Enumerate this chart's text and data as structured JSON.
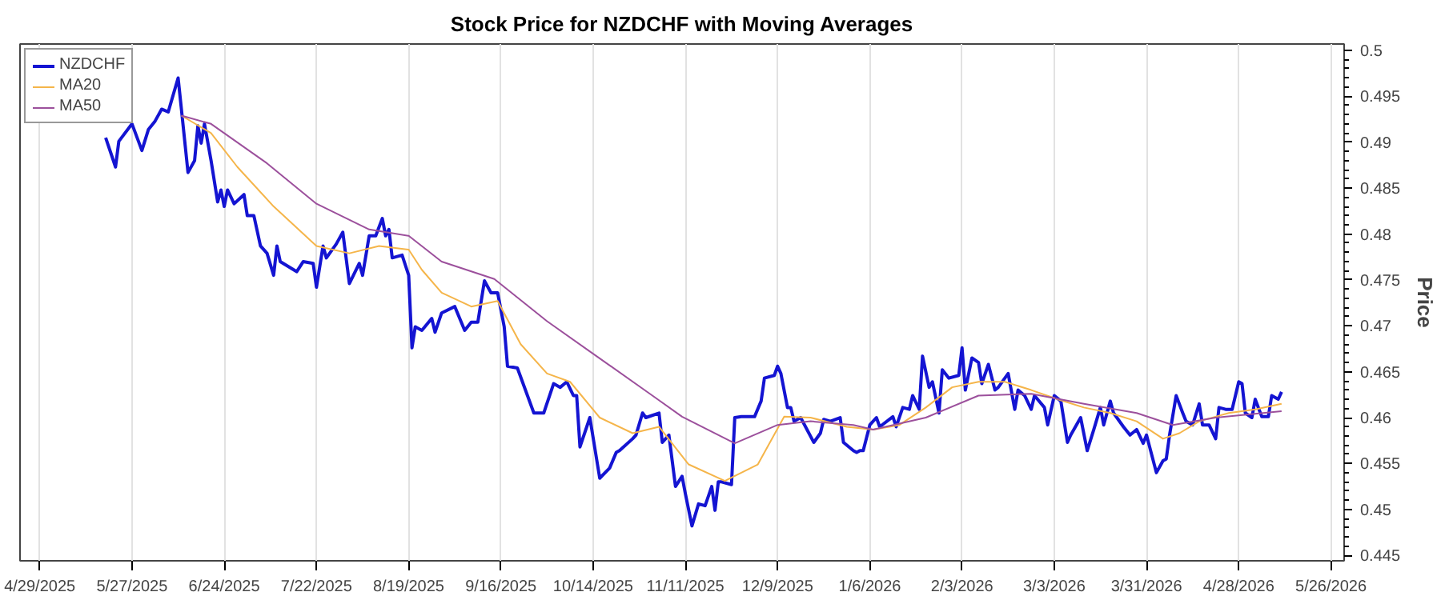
{
  "chart_data": {
    "type": "line",
    "title": "Stock Price for NZDCHF with Moving Averages",
    "ylabel": "Price",
    "xlim": [
      "2025-04-23",
      "2026-05-30"
    ],
    "xticks": [
      {
        "value": "2025-04-29",
        "label": "4/29/2025"
      },
      {
        "value": "2025-05-27",
        "label": "5/27/2025"
      },
      {
        "value": "2025-06-24",
        "label": "6/24/2025"
      },
      {
        "value": "2025-07-22",
        "label": "7/22/2025"
      },
      {
        "value": "2025-08-19",
        "label": "8/19/2025"
      },
      {
        "value": "2025-09-16",
        "label": "9/16/2025"
      },
      {
        "value": "2025-10-14",
        "label": "10/14/2025"
      },
      {
        "value": "2025-11-11",
        "label": "11/11/2025"
      },
      {
        "value": "2025-12-09",
        "label": "12/9/2025"
      },
      {
        "value": "2026-01-06",
        "label": "1/6/2026"
      },
      {
        "value": "2026-02-03",
        "label": "2/3/2026"
      },
      {
        "value": "2026-03-03",
        "label": "3/3/2026"
      },
      {
        "value": "2026-03-31",
        "label": "3/31/2026"
      },
      {
        "value": "2026-04-28",
        "label": "4/28/2026"
      },
      {
        "value": "2026-05-26",
        "label": "5/26/2026"
      }
    ],
    "ylim": [
      0.4444,
      0.5007
    ],
    "yticks": [
      0.445,
      0.45,
      0.455,
      0.46,
      0.465,
      0.47,
      0.475,
      0.48,
      0.485,
      0.49,
      0.495,
      0.5
    ],
    "grid": "x",
    "legend": "top left",
    "marker": "none",
    "line_style": "solid",
    "series": [
      {
        "name": "NZDCHF",
        "color": "#1414d2",
        "x": [
          "2025-05-19",
          "2025-05-22",
          "2025-05-23",
          "2025-05-27",
          "2025-05-30",
          "2025-06-01",
          "2025-06-03",
          "2025-06-05",
          "2025-06-07",
          "2025-06-10",
          "2025-06-11",
          "2025-06-13",
          "2025-06-15",
          "2025-06-16",
          "2025-06-17",
          "2025-06-18",
          "2025-06-20",
          "2025-06-22",
          "2025-06-23",
          "2025-06-24",
          "2025-06-25",
          "2025-06-27",
          "2025-06-30",
          "2025-07-01",
          "2025-07-03",
          "2025-07-05",
          "2025-07-07",
          "2025-07-09",
          "2025-07-10",
          "2025-07-11",
          "2025-07-16",
          "2025-07-18",
          "2025-07-21",
          "2025-07-22",
          "2025-07-24",
          "2025-07-25",
          "2025-07-28",
          "2025-07-30",
          "2025-08-01",
          "2025-08-04",
          "2025-08-05",
          "2025-08-07",
          "2025-08-09",
          "2025-08-11",
          "2025-08-12",
          "2025-08-13",
          "2025-08-14",
          "2025-08-17",
          "2025-08-19",
          "2025-08-20",
          "2025-08-21",
          "2025-08-23",
          "2025-08-26",
          "2025-08-27",
          "2025-08-29",
          "2025-09-02",
          "2025-09-05",
          "2025-09-07",
          "2025-09-09",
          "2025-09-11",
          "2025-09-13",
          "2025-09-15",
          "2025-09-17",
          "2025-09-18",
          "2025-09-21",
          "2025-09-26",
          "2025-09-29",
          "2025-10-02",
          "2025-10-04",
          "2025-10-06",
          "2025-10-08",
          "2025-10-09",
          "2025-10-10",
          "2025-10-13",
          "2025-10-16",
          "2025-10-19",
          "2025-10-21",
          "2025-10-22",
          "2025-10-26",
          "2025-10-27",
          "2025-10-29",
          "2025-10-30",
          "2025-11-03",
          "2025-11-04",
          "2025-11-06",
          "2025-11-08",
          "2025-11-10",
          "2025-11-11",
          "2025-11-13",
          "2025-11-15",
          "2025-11-17",
          "2025-11-19",
          "2025-11-20",
          "2025-11-21",
          "2025-11-22",
          "2025-11-25",
          "2025-11-26",
          "2025-11-28",
          "2025-12-02",
          "2025-12-04",
          "2025-12-05",
          "2025-12-08",
          "2025-12-09",
          "2025-12-10",
          "2025-12-12",
          "2025-12-13",
          "2025-12-14",
          "2025-12-16",
          "2025-12-20",
          "2025-12-22",
          "2025-12-23",
          "2025-12-25",
          "2025-12-28",
          "2025-12-29",
          "2026-01-01",
          "2026-01-02",
          "2026-01-03",
          "2026-01-04",
          "2026-01-06",
          "2026-01-08",
          "2026-01-09",
          "2026-01-13",
          "2026-01-14",
          "2026-01-16",
          "2026-01-18",
          "2026-01-19",
          "2026-01-21",
          "2026-01-22",
          "2026-01-24",
          "2026-01-25",
          "2026-01-27",
          "2026-01-28",
          "2026-01-30",
          "2026-02-02",
          "2026-02-03",
          "2026-02-04",
          "2026-02-06",
          "2026-02-08",
          "2026-02-09",
          "2026-02-11",
          "2026-02-13",
          "2026-02-14",
          "2026-02-17",
          "2026-02-19",
          "2026-02-20",
          "2026-02-22",
          "2026-02-24",
          "2026-02-25",
          "2026-02-28",
          "2026-03-01",
          "2026-03-03",
          "2026-03-05",
          "2026-03-07",
          "2026-03-08",
          "2026-03-11",
          "2026-03-13",
          "2026-03-15",
          "2026-03-17",
          "2026-03-18",
          "2026-03-20",
          "2026-03-21",
          "2026-03-24",
          "2026-03-26",
          "2026-03-28",
          "2026-03-30",
          "2026-03-31",
          "2026-04-03",
          "2026-04-05",
          "2026-04-06",
          "2026-04-07",
          "2026-04-09",
          "2026-04-11",
          "2026-04-12",
          "2026-04-14",
          "2026-04-16",
          "2026-04-17",
          "2026-04-19",
          "2026-04-21",
          "2026-04-22",
          "2026-04-24",
          "2026-04-26",
          "2026-04-28",
          "2026-04-29",
          "2026-04-30",
          "2026-05-02",
          "2026-05-03",
          "2026-05-05",
          "2026-05-07",
          "2026-05-08",
          "2026-05-10",
          "2026-05-11"
        ],
        "values": [
          0.4905,
          0.4873,
          0.4901,
          0.492,
          0.4891,
          0.4914,
          0.4923,
          0.4936,
          0.4933,
          0.497,
          0.4936,
          0.4867,
          0.488,
          0.4918,
          0.4899,
          0.492,
          0.488,
          0.4835,
          0.4848,
          0.483,
          0.4848,
          0.4833,
          0.4843,
          0.482,
          0.482,
          0.4787,
          0.4779,
          0.4755,
          0.4787,
          0.477,
          0.4759,
          0.477,
          0.4768,
          0.4742,
          0.4787,
          0.4774,
          0.4789,
          0.4802,
          0.4746,
          0.4768,
          0.4755,
          0.4798,
          0.4798,
          0.4817,
          0.4798,
          0.4805,
          0.4774,
          0.4777,
          0.4755,
          0.4676,
          0.4699,
          0.4695,
          0.4708,
          0.4693,
          0.4714,
          0.4721,
          0.4695,
          0.4704,
          0.4704,
          0.4749,
          0.4736,
          0.4736,
          0.4699,
          0.4656,
          0.4654,
          0.4605,
          0.4605,
          0.4637,
          0.4633,
          0.4639,
          0.4624,
          0.4624,
          0.4568,
          0.46,
          0.4534,
          0.4545,
          0.4562,
          0.4564,
          0.4577,
          0.4581,
          0.4605,
          0.46,
          0.4605,
          0.4573,
          0.4581,
          0.4525,
          0.4536,
          0.4517,
          0.4482,
          0.4506,
          0.4504,
          0.4525,
          0.4499,
          0.453,
          0.453,
          0.4527,
          0.46,
          0.4601,
          0.4601,
          0.4618,
          0.4643,
          0.4646,
          0.4656,
          0.4648,
          0.4611,
          0.4611,
          0.4596,
          0.46,
          0.4573,
          0.4583,
          0.4598,
          0.4596,
          0.46,
          0.4573,
          0.4564,
          0.4562,
          0.4564,
          0.4564,
          0.4592,
          0.46,
          0.459,
          0.4601,
          0.459,
          0.4611,
          0.4609,
          0.4624,
          0.4609,
          0.4667,
          0.4633,
          0.4639,
          0.4605,
          0.4652,
          0.4643,
          0.4646,
          0.4676,
          0.463,
          0.4665,
          0.466,
          0.4637,
          0.4658,
          0.463,
          0.4633,
          0.4648,
          0.4609,
          0.463,
          0.4624,
          0.4609,
          0.4624,
          0.4611,
          0.4592,
          0.4624,
          0.4618,
          0.4573,
          0.4581,
          0.46,
          0.4564,
          0.4587,
          0.4611,
          0.4592,
          0.4618,
          0.4605,
          0.459,
          0.4581,
          0.4587,
          0.4572,
          0.4581,
          0.454,
          0.4553,
          0.4555,
          0.4581,
          0.4624,
          0.4605,
          0.4596,
          0.4592,
          0.4615,
          0.4592,
          0.4592,
          0.4577,
          0.4611,
          0.4609,
          0.4609,
          0.4639,
          0.4637,
          0.4605,
          0.46,
          0.462,
          0.4601,
          0.4601,
          0.4624,
          0.462,
          0.4628
        ]
      },
      {
        "name": "MA20",
        "color": "#f5b54a",
        "x": [
          "2025-06-11",
          "2025-06-20",
          "2025-06-28",
          "2025-07-09",
          "2025-07-22",
          "2025-08-01",
          "2025-08-10",
          "2025-08-19",
          "2025-08-23",
          "2025-08-29",
          "2025-09-07",
          "2025-09-15",
          "2025-09-22",
          "2025-09-30",
          "2025-10-07",
          "2025-10-16",
          "2025-10-26",
          "2025-11-03",
          "2025-11-12",
          "2025-11-23",
          "2025-12-03",
          "2025-12-11",
          "2025-12-19",
          "2025-12-30",
          "2026-01-07",
          "2026-01-15",
          "2026-01-23",
          "2026-01-31",
          "2026-02-08",
          "2026-02-16",
          "2026-02-24",
          "2026-03-04",
          "2026-03-12",
          "2026-03-20",
          "2026-03-28",
          "2026-04-05",
          "2026-04-10",
          "2026-04-16",
          "2026-04-25",
          "2026-05-03",
          "2026-05-11"
        ],
        "values": [
          0.4929,
          0.491,
          0.4873,
          0.483,
          0.4787,
          0.4779,
          0.4787,
          0.4783,
          0.4761,
          0.4736,
          0.4721,
          0.4727,
          0.468,
          0.4648,
          0.4639,
          0.46,
          0.4583,
          0.459,
          0.4549,
          0.4531,
          0.4549,
          0.4601,
          0.46,
          0.459,
          0.4587,
          0.4592,
          0.4611,
          0.4633,
          0.4639,
          0.4639,
          0.463,
          0.462,
          0.4611,
          0.4605,
          0.4596,
          0.4577,
          0.4583,
          0.4596,
          0.4605,
          0.4609,
          0.4615
        ]
      },
      {
        "name": "MA50",
        "color": "#9c509c",
        "x": [
          "2025-06-11",
          "2025-06-20",
          "2025-07-07",
          "2025-07-22",
          "2025-08-07",
          "2025-08-19",
          "2025-08-29",
          "2025-09-14",
          "2025-09-30",
          "2025-10-15",
          "2025-11-01",
          "2025-11-10",
          "2025-11-26",
          "2025-12-09",
          "2025-12-19",
          "2026-01-01",
          "2026-01-07",
          "2026-01-23",
          "2026-02-08",
          "2026-02-24",
          "2026-03-12",
          "2026-03-28",
          "2026-04-08",
          "2026-04-21",
          "2026-05-11"
        ],
        "values": [
          0.4929,
          0.492,
          0.4877,
          0.4833,
          0.4805,
          0.4798,
          0.477,
          0.4751,
          0.4705,
          0.4667,
          0.4624,
          0.4601,
          0.4572,
          0.4592,
          0.4596,
          0.4592,
          0.4587,
          0.46,
          0.4624,
          0.4626,
          0.4615,
          0.4605,
          0.4592,
          0.46,
          0.4607
        ]
      }
    ]
  }
}
